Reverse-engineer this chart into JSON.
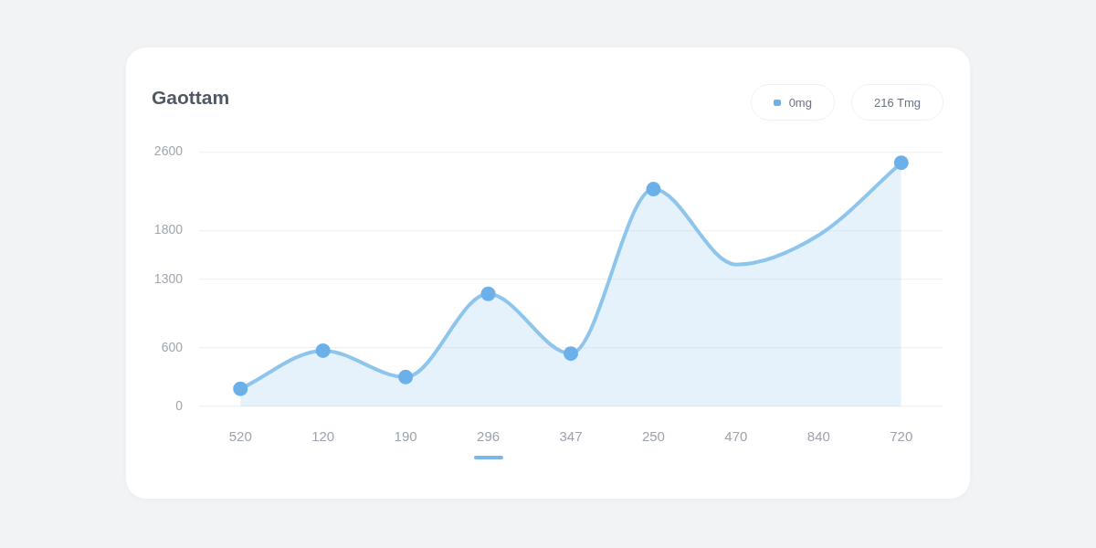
{
  "chart_data": {
    "type": "area",
    "title": "Gaottam",
    "categories": [
      "520",
      "120",
      "190",
      "296",
      "347",
      "250",
      "470",
      "840",
      "720"
    ],
    "series": [
      {
        "color": "#8ec5ec",
        "values": [
          180,
          570,
          300,
          1150,
          540,
          2220,
          1450,
          1750,
          2490
        ]
      },
      {
        "name": "0mg",
        "type": "scatter",
        "marker": "circle",
        "color": "#6cb0ea",
        "values": [
          180,
          570,
          300,
          1150,
          540,
          2220,
          null,
          null,
          2490
        ]
      }
    ],
    "annotations": [
      "216 Tmg"
    ],
    "ylim": [
      0,
      2600
    ],
    "yticks": [
      0,
      600,
      1300,
      1800,
      2600
    ],
    "grid": "y",
    "legend": "top right"
  }
}
